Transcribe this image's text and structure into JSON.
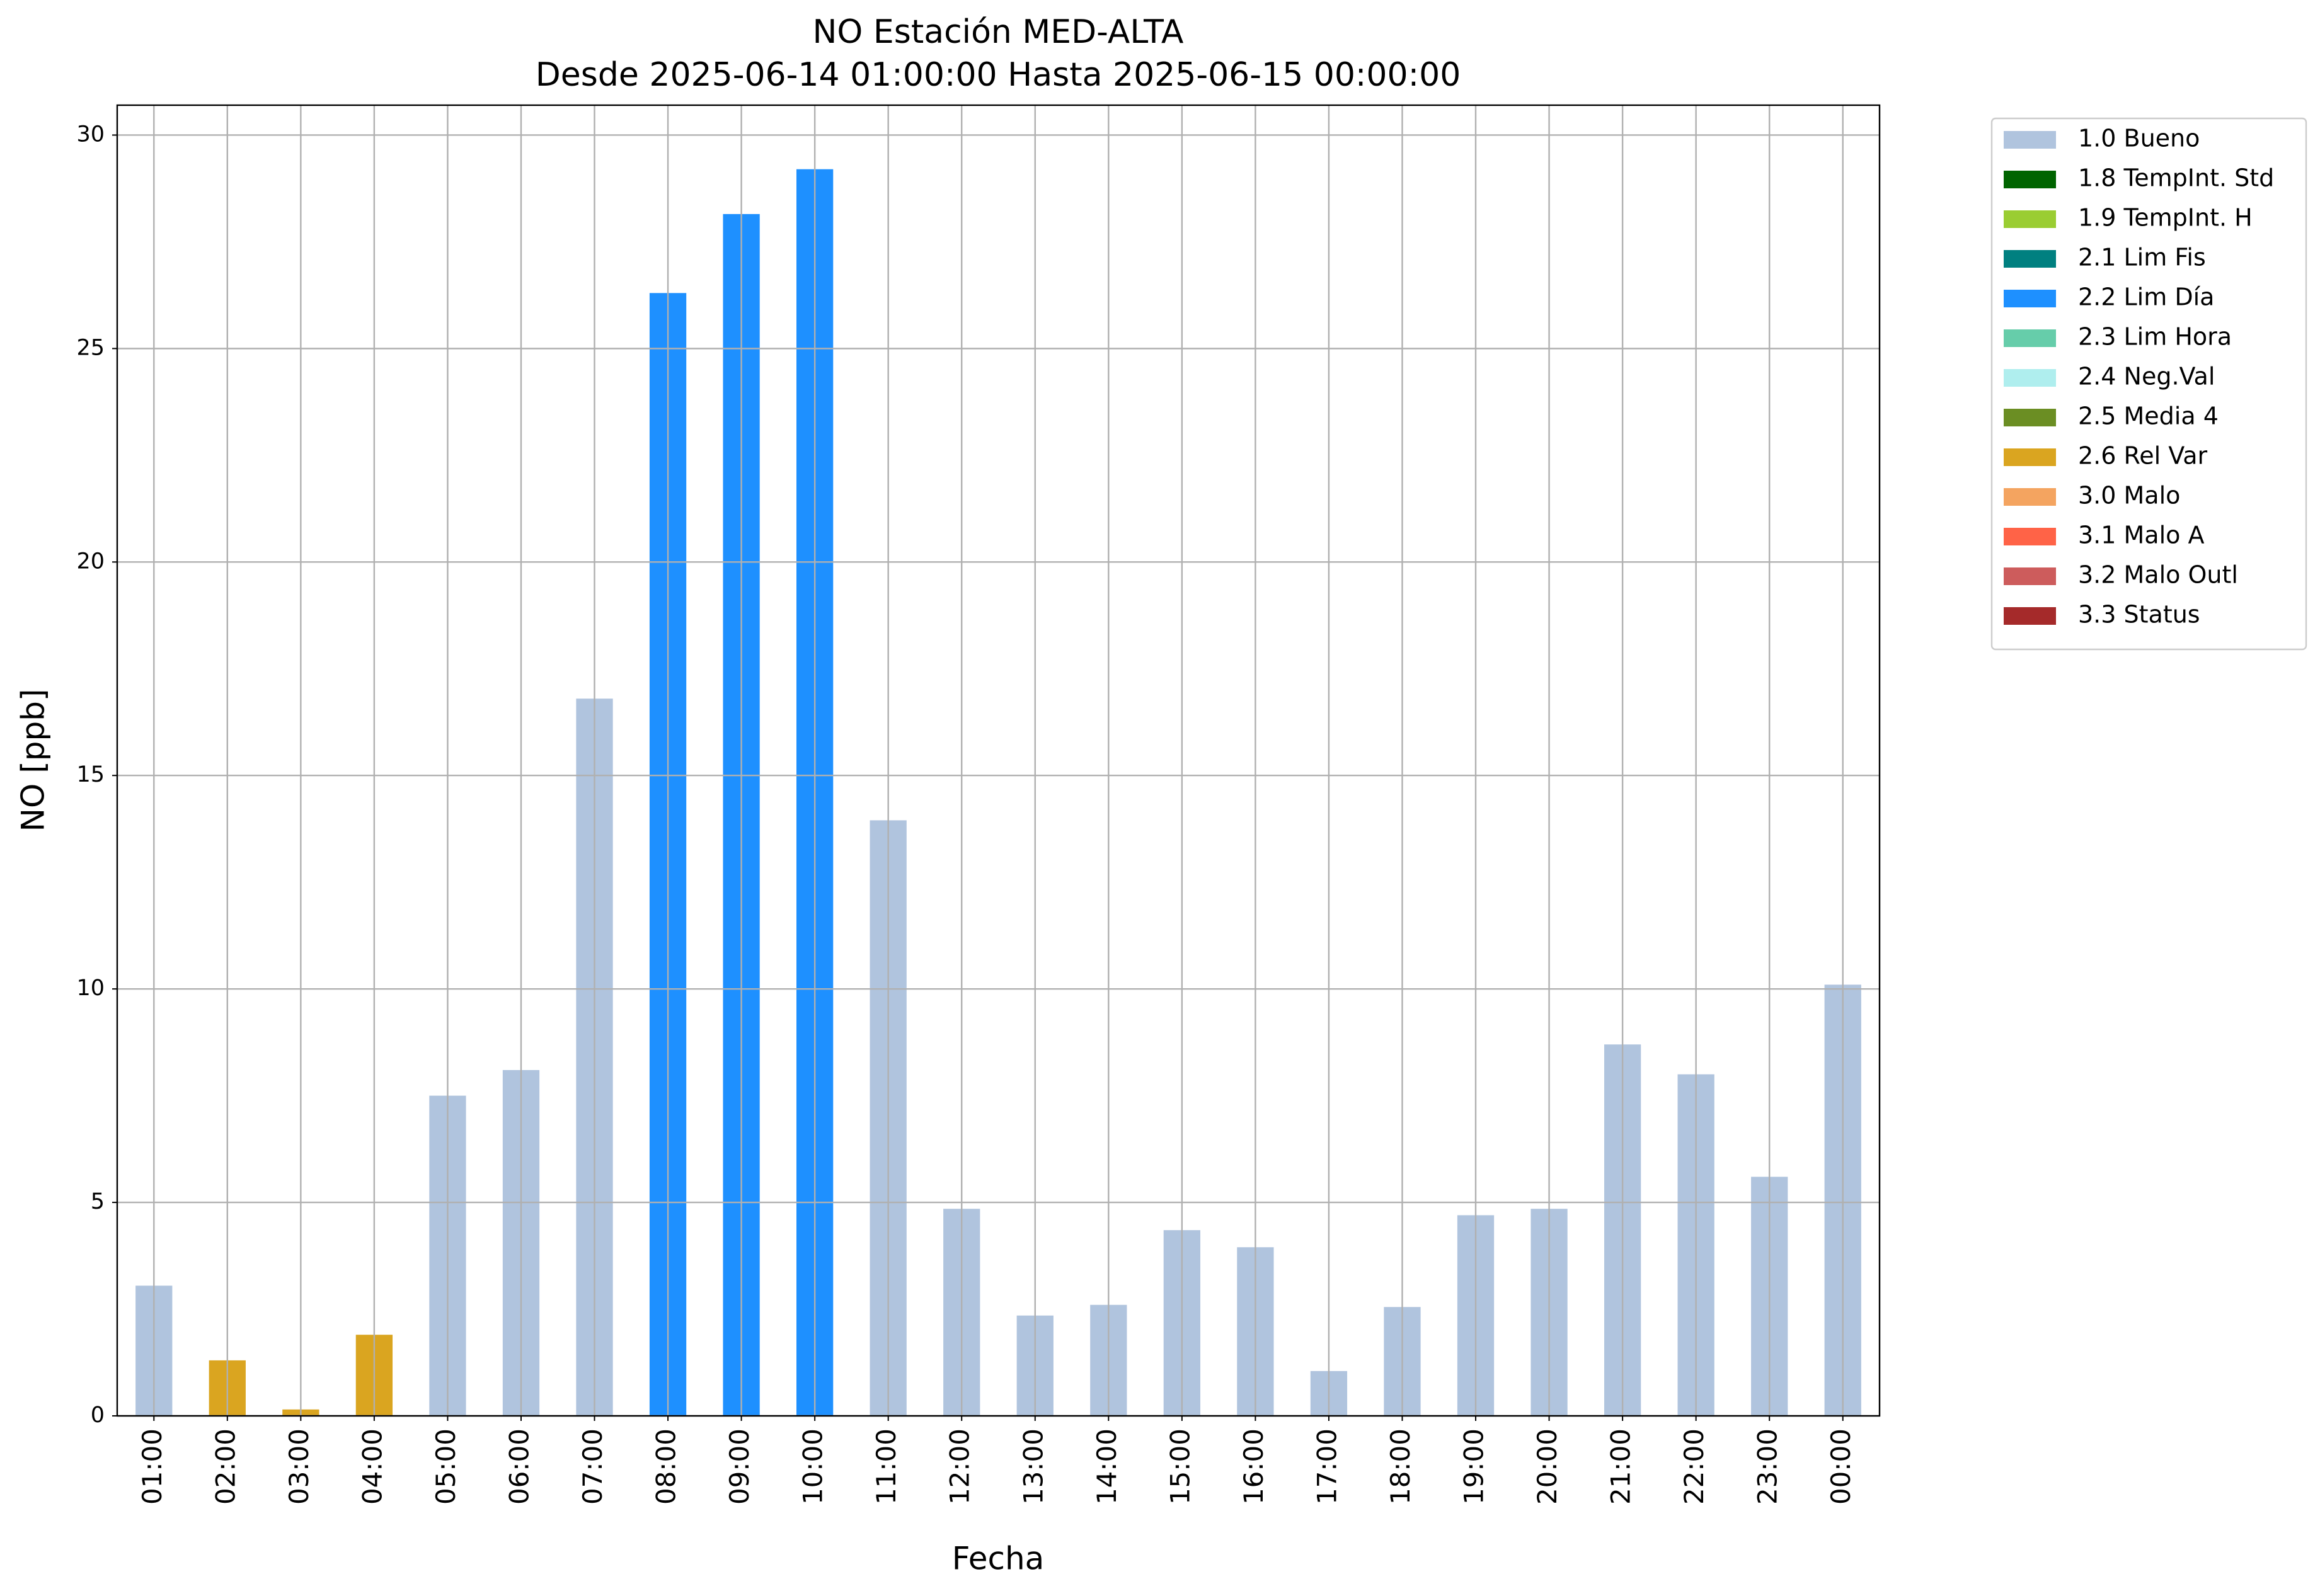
{
  "chart_data": {
    "type": "bar",
    "stacked": true,
    "title": "NO Estación MED-ALTA",
    "subtitle": "Desde 2025-06-14 01:00:00 Hasta 2025-06-15 00:00:00",
    "x_label": "Fecha",
    "y_label": "NO [ppb]",
    "categories": [
      "01:00",
      "02:00",
      "03:00",
      "04:00",
      "05:00",
      "06:00",
      "07:00",
      "08:00",
      "09:00",
      "10:00",
      "11:00",
      "12:00",
      "13:00",
      "14:00",
      "15:00",
      "16:00",
      "17:00",
      "18:00",
      "19:00",
      "20:00",
      "21:00",
      "22:00",
      "23:00",
      "00:00"
    ],
    "ylim": [
      0,
      30.7
    ],
    "yticks": [
      0,
      5,
      10,
      15,
      20,
      25,
      30
    ],
    "grid": true,
    "legend": "outside-upper-right",
    "series": [
      {
        "name": "1.0 Bueno",
        "color": "#b0c4de",
        "values": [
          3.05,
          null,
          null,
          null,
          7.5,
          8.1,
          16.8,
          null,
          null,
          null,
          13.95,
          4.85,
          2.35,
          2.6,
          4.35,
          3.95,
          1.05,
          2.55,
          4.7,
          4.85,
          8.7,
          8.0,
          5.6,
          10.1
        ]
      },
      {
        "name": "1.8 TempInt. Std",
        "color": "#006400",
        "values": [
          null,
          null,
          null,
          null,
          null,
          null,
          null,
          null,
          null,
          null,
          null,
          null,
          null,
          null,
          null,
          null,
          null,
          null,
          null,
          null,
          null,
          null,
          null,
          null
        ]
      },
      {
        "name": "1.9 TempInt. H",
        "color": "#9acd32",
        "values": [
          null,
          null,
          null,
          null,
          null,
          null,
          null,
          null,
          null,
          null,
          null,
          null,
          null,
          null,
          null,
          null,
          null,
          null,
          null,
          null,
          null,
          null,
          null,
          null
        ]
      },
      {
        "name": "2.1 Lim Fis",
        "color": "#008080",
        "values": [
          null,
          null,
          null,
          null,
          null,
          null,
          null,
          null,
          null,
          null,
          null,
          null,
          null,
          null,
          null,
          null,
          null,
          null,
          null,
          null,
          null,
          null,
          null,
          null
        ]
      },
      {
        "name": "2.2 Lim Día",
        "color": "#1e90ff",
        "values": [
          null,
          null,
          null,
          null,
          null,
          null,
          null,
          26.3,
          28.15,
          29.2,
          null,
          null,
          null,
          null,
          null,
          null,
          null,
          null,
          null,
          null,
          null,
          null,
          null,
          null
        ]
      },
      {
        "name": "2.3 Lim Hora",
        "color": "#66cdaa",
        "values": [
          null,
          null,
          null,
          null,
          null,
          null,
          null,
          null,
          null,
          null,
          null,
          null,
          null,
          null,
          null,
          null,
          null,
          null,
          null,
          null,
          null,
          null,
          null,
          null
        ]
      },
      {
        "name": "2.4 Neg.Val",
        "color": "#afeeee",
        "values": [
          null,
          null,
          null,
          null,
          null,
          null,
          null,
          null,
          null,
          null,
          null,
          null,
          null,
          null,
          null,
          null,
          null,
          null,
          null,
          null,
          null,
          null,
          null,
          null
        ]
      },
      {
        "name": "2.5 Media 4",
        "color": "#6b8e23",
        "values": [
          null,
          null,
          null,
          null,
          null,
          null,
          null,
          null,
          null,
          null,
          null,
          null,
          null,
          null,
          null,
          null,
          null,
          null,
          null,
          null,
          null,
          null,
          null,
          null
        ]
      },
      {
        "name": "2.6 Rel Var",
        "color": "#daa520",
        "values": [
          null,
          1.3,
          0.15,
          1.9,
          null,
          null,
          null,
          null,
          null,
          null,
          null,
          null,
          null,
          null,
          null,
          null,
          null,
          null,
          null,
          null,
          null,
          null,
          null,
          null
        ]
      },
      {
        "name": "3.0 Malo",
        "color": "#f4a460",
        "values": [
          null,
          null,
          null,
          null,
          null,
          null,
          null,
          null,
          null,
          null,
          null,
          null,
          null,
          null,
          null,
          null,
          null,
          null,
          null,
          null,
          null,
          null,
          null,
          null
        ]
      },
      {
        "name": "3.1 Malo A",
        "color": "#ff6347",
        "values": [
          null,
          null,
          null,
          null,
          null,
          null,
          null,
          null,
          null,
          null,
          null,
          null,
          null,
          null,
          null,
          null,
          null,
          null,
          null,
          null,
          null,
          null,
          null,
          null
        ]
      },
      {
        "name": "3.2 Malo Outl",
        "color": "#cd5c5c",
        "values": [
          null,
          null,
          null,
          null,
          null,
          null,
          null,
          null,
          null,
          null,
          null,
          null,
          null,
          null,
          null,
          null,
          null,
          null,
          null,
          null,
          null,
          null,
          null,
          null
        ]
      },
      {
        "name": "3.3 Status",
        "color": "#a52a2a",
        "values": [
          null,
          null,
          null,
          null,
          null,
          null,
          null,
          null,
          null,
          null,
          null,
          null,
          null,
          null,
          null,
          null,
          null,
          null,
          null,
          null,
          null,
          null,
          null,
          null
        ]
      }
    ]
  }
}
